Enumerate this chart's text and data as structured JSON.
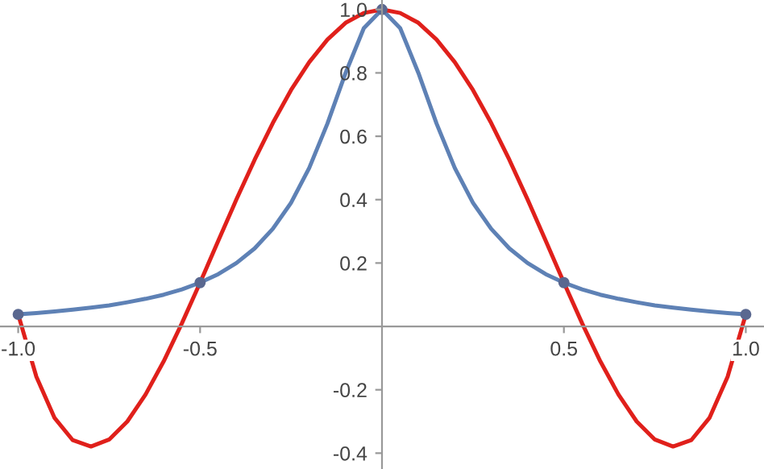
{
  "chart_data": {
    "type": "line",
    "xlim": [
      -1.05,
      1.05
    ],
    "ylim": [
      -0.45,
      1.03
    ],
    "xticks": [
      {
        "value": -1,
        "label": "-1.0"
      },
      -0.5,
      0.5,
      {
        "value": 1,
        "label": "1.0"
      }
    ],
    "yticks": [
      -0.4,
      -0.2,
      0.2,
      0.4,
      0.6,
      0.8,
      {
        "value": 1,
        "label": "1.0"
      }
    ],
    "grid": false,
    "legend": false,
    "series": [
      {
        "color": "#5e81b5",
        "marker": "none",
        "x": [
          -1,
          -0.95,
          -0.9,
          -0.85,
          -0.8,
          -0.75,
          -0.7,
          -0.65,
          -0.6,
          -0.55,
          -0.5,
          -0.45,
          -0.4,
          -0.35,
          -0.3,
          -0.25,
          -0.2,
          -0.15,
          -0.1,
          -0.05,
          0,
          0.05,
          0.1,
          0.15,
          0.2,
          0.25,
          0.3,
          0.35,
          0.4,
          0.45,
          0.5,
          0.55,
          0.6,
          0.65,
          0.7,
          0.75,
          0.8,
          0.85,
          0.9,
          0.95,
          1
        ],
        "values": [
          0.038,
          0.042,
          0.047,
          0.053,
          0.059,
          0.066,
          0.076,
          0.087,
          0.1,
          0.117,
          0.138,
          0.165,
          0.2,
          0.246,
          0.308,
          0.39,
          0.5,
          0.64,
          0.8,
          0.941,
          1,
          0.941,
          0.8,
          0.64,
          0.5,
          0.39,
          0.308,
          0.246,
          0.2,
          0.165,
          0.138,
          0.117,
          0.1,
          0.087,
          0.076,
          0.066,
          0.059,
          0.053,
          0.047,
          0.042,
          0.038
        ]
      },
      {
        "color": "#e0201b",
        "marker": "none",
        "x": [
          -1,
          -0.95,
          -0.9,
          -0.85,
          -0.8,
          -0.75,
          -0.7,
          -0.65,
          -0.6,
          -0.55,
          -0.5,
          -0.45,
          -0.4,
          -0.35,
          -0.3,
          -0.25,
          -0.2,
          -0.15,
          -0.1,
          -0.05,
          0,
          0.05,
          0.1,
          0.15,
          0.2,
          0.25,
          0.3,
          0.35,
          0.4,
          0.45,
          0.5,
          0.55,
          0.6,
          0.65,
          0.7,
          0.75,
          0.8,
          0.85,
          0.9,
          0.95,
          1
        ],
        "values": [
          0.038,
          -0.159,
          -0.289,
          -0.359,
          -0.379,
          -0.357,
          -0.3,
          -0.215,
          -0.11,
          0.01,
          0.138,
          0.27,
          0.401,
          0.526,
          0.642,
          0.746,
          0.834,
          0.905,
          0.958,
          0.989,
          1,
          0.989,
          0.958,
          0.905,
          0.834,
          0.746,
          0.642,
          0.526,
          0.401,
          0.27,
          0.138,
          0.01,
          -0.11,
          -0.215,
          -0.3,
          -0.357,
          -0.379,
          -0.359,
          -0.289,
          -0.159,
          0.038
        ]
      },
      {
        "type": "scatter",
        "color": "#5a6890",
        "marker": "circle",
        "x": [
          -1,
          -0.5,
          0,
          0.5,
          1
        ],
        "values": [
          0.038,
          0.138,
          1,
          0.138,
          0.038
        ]
      }
    ]
  }
}
